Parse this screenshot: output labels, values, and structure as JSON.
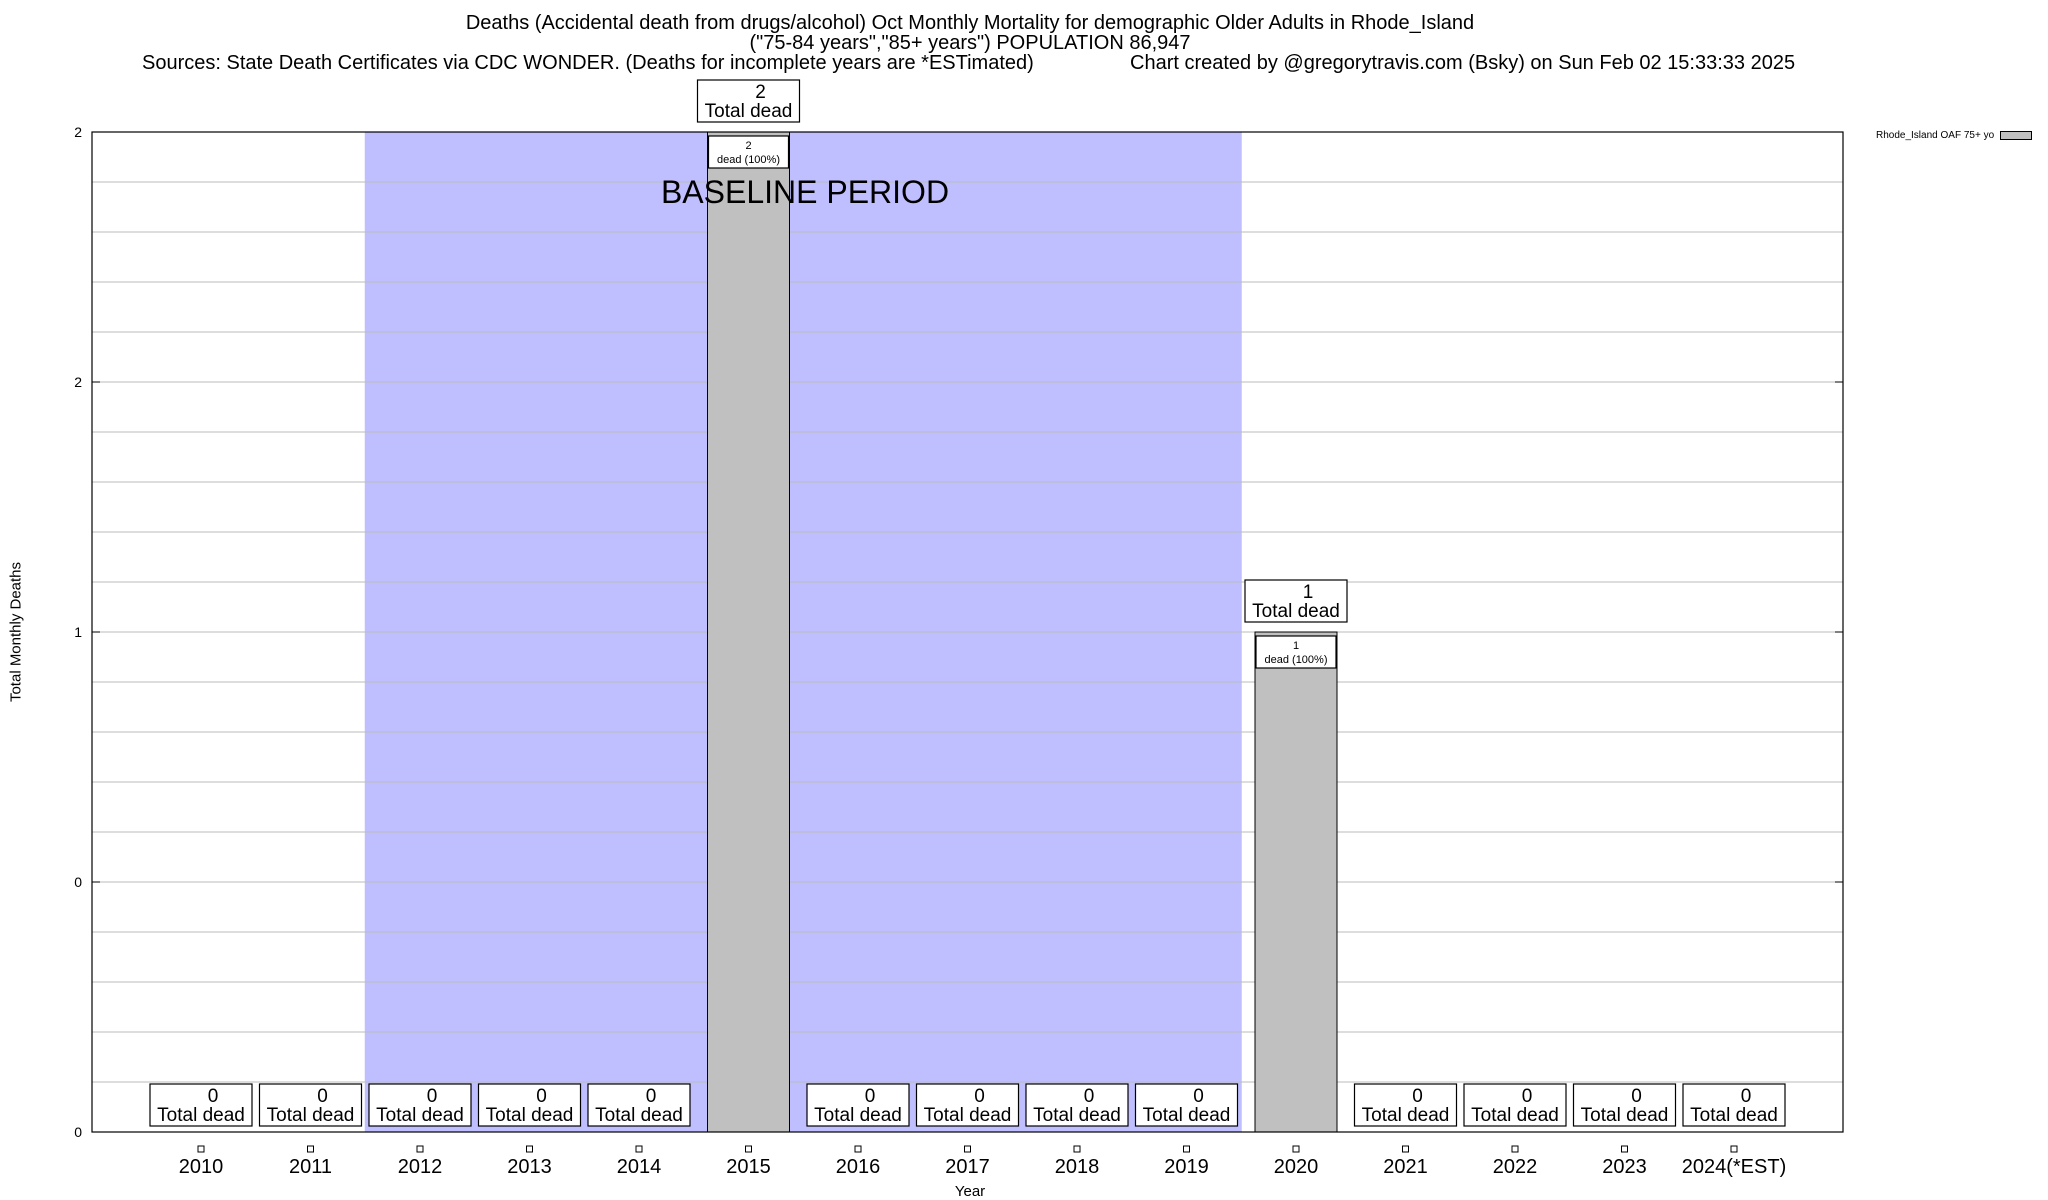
{
  "header": {
    "title_line1": "Deaths (Accidental death from drugs/alcohol) Oct Monthly Mortality for demographic Older Adults in Rhode_Island",
    "title_line2": "(\"75-84 years\",\"85+ years\") POPULATION 86,947",
    "sources": "Sources: State Death Certificates via CDC WONDER. (Deaths for incomplete years are *ESTimated)",
    "credit": "Chart created by @gregorytravis.com (Bsky) on Sun Feb 02 15:33:33 2025"
  },
  "legend": {
    "label": "Rhode_Island OAF 75+ yo"
  },
  "chart_data": {
    "type": "bar",
    "title": "Deaths (Accidental death from drugs/alcohol) Oct Monthly Mortality for demographic Older Adults in Rhode_Island",
    "xlabel": "Year",
    "ylabel": "Total Monthly Deaths",
    "categories": [
      "2010",
      "2011",
      "2012",
      "2013",
      "2014",
      "2015",
      "2016",
      "2017",
      "2018",
      "2019",
      "2020",
      "2021",
      "2022",
      "2023",
      "2024(*EST)"
    ],
    "series": [
      {
        "name": "Rhode_Island OAF 75+ yo",
        "values": [
          0,
          0,
          0,
          0,
          0,
          2,
          0,
          0,
          0,
          0,
          1,
          0,
          0,
          0,
          0
        ]
      }
    ],
    "ylim": [
      0,
      2
    ],
    "y_tick_labels": [
      "0",
      "0",
      "1",
      "2",
      "2"
    ],
    "total_label_text": "Total dead",
    "bar_label_suffix": "dead (100%)",
    "baseline_label": "BASELINE PERIOD",
    "baseline_range": [
      "2012",
      "2019"
    ],
    "colors": {
      "bar": "#c0c0c0",
      "baseline": "#bfbfff",
      "grid": "#bbbbbb"
    },
    "grid": true,
    "legend_position": "top-right"
  }
}
